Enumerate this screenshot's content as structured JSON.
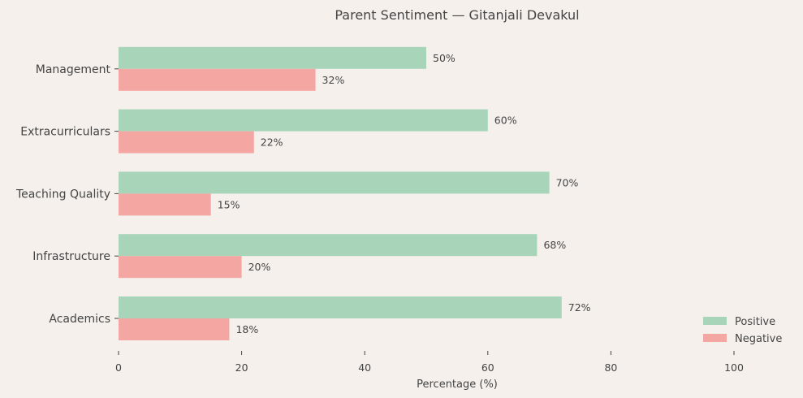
{
  "chart_data": {
    "type": "bar",
    "orientation": "horizontal",
    "title": "Parent Sentiment — Gitanjali Devakul",
    "xlabel": "Percentage (%)",
    "ylabel": "",
    "xlim": [
      0,
      110
    ],
    "xticks": [
      0,
      20,
      40,
      60,
      80,
      100
    ],
    "categories": [
      "Academics",
      "Infrastructure",
      "Teaching Quality",
      "Extracurriculars",
      "Management"
    ],
    "series": [
      {
        "name": "Positive",
        "color": "#a8d5b9",
        "values": [
          72,
          68,
          70,
          60,
          50
        ]
      },
      {
        "name": "Negative",
        "color": "#f4a6a3",
        "values": [
          18,
          20,
          15,
          22,
          32
        ]
      }
    ],
    "value_label_suffix": "%",
    "grid": false,
    "legend_position": "lower-right"
  }
}
